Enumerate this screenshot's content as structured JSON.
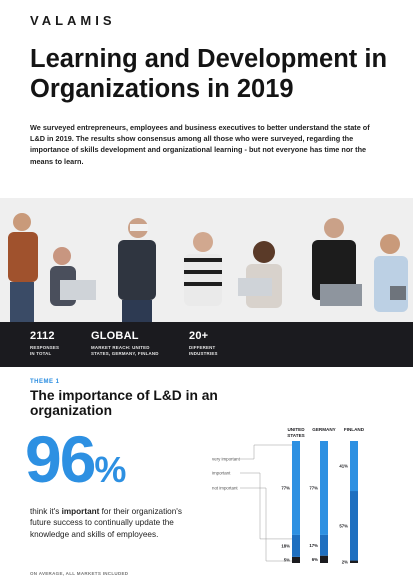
{
  "brand": {
    "logo": "VALAMIS"
  },
  "header": {
    "title": "Learning and Development in Organizations in 2019"
  },
  "intro": "We surveyed entrepreneurs, employees and business executives to better understand the state of L&D in 2019. The results show consensus among all those who were surveyed, regarding the importance of skills development and organizational learning - but not everyone has time nor the means to learn.",
  "stats": [
    {
      "value": "2112",
      "label_line1": "RESPONSES",
      "label_line2": "IN TOTAL"
    },
    {
      "value": "GLOBAL",
      "label_line1": "MARKET REACH: UNITED",
      "label_line2": "STATES, GERMANY, FINLAND"
    },
    {
      "value": "20+",
      "label_line1": "DIFFERENT",
      "label_line2": "INDUSTRIES"
    }
  ],
  "theme": {
    "label": "THEME 1",
    "title": "The importance of L&D in an organization",
    "big_number": "96",
    "big_unit": "%",
    "desc_prefix": "think it's ",
    "desc_emphasis": "important",
    "desc_suffix": " for their organization's future success to continually update the knowledge and skills of employees.",
    "footnote": "ON AVERAGE, ALL MARKETS INCLUDED"
  },
  "colors": {
    "accent": "#2d90e2",
    "very_important": "#2d90e2",
    "important": "#1e6fc0",
    "not_important": "#1b1b1f",
    "stats_bg": "#1b1b1f"
  },
  "chart_data": {
    "type": "bar",
    "stacked": true,
    "categories": [
      "UNITED STATES",
      "GERMANY",
      "FINLAND"
    ],
    "category_lines": [
      [
        "UNITED",
        "STATES"
      ],
      [
        "GERMANY"
      ],
      [
        "FINLAND"
      ]
    ],
    "series": [
      {
        "name": "very important",
        "values": [
          77,
          77,
          41
        ]
      },
      {
        "name": "important",
        "values": [
          18,
          17,
          57
        ]
      },
      {
        "name": "not important",
        "values": [
          5,
          6,
          2
        ]
      }
    ],
    "labels": [
      [
        "77%",
        "18%",
        "5%"
      ],
      [
        "77%",
        "17%",
        "6%"
      ],
      [
        "41%",
        "57%",
        "2%"
      ]
    ],
    "ylim": [
      0,
      100
    ],
    "legend_position": "left"
  }
}
